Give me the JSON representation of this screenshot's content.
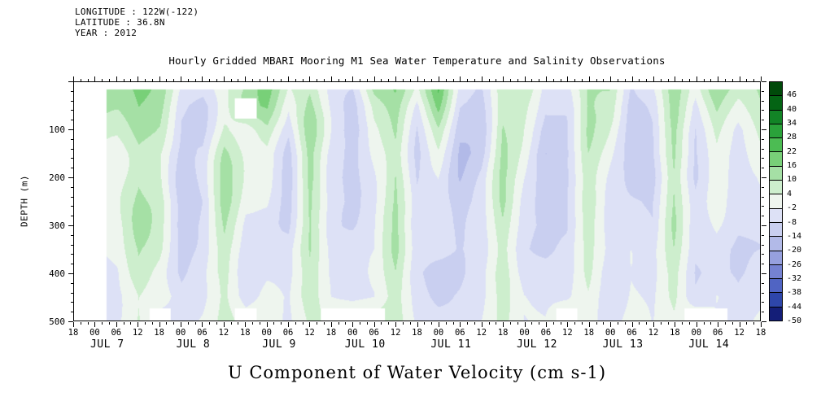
{
  "header": {
    "lines": [
      "LONGITUDE : 122W(-122)",
      "LATITUDE : 36.8N",
      "YEAR : 2012"
    ]
  },
  "title": "Hourly Gridded MBARI Mooring M1 Sea Water Temperature and Salinity Observations",
  "caption": "U Component of Water Velocity (cm s-1)",
  "axes": {
    "y": {
      "label": "DEPTH (m)",
      "min": 0,
      "max": 500,
      "major_step": 100,
      "minor_step": 20,
      "major_ticks": [
        100,
        200,
        300,
        400,
        500
      ]
    },
    "x": {
      "hours_span": 192,
      "major_step_hours": 6,
      "minor_step_hours": 2,
      "hour_tick_labels": [
        "18",
        "00",
        "06",
        "12",
        "18",
        "00",
        "06",
        "12",
        "18",
        "00",
        "06",
        "12",
        "18",
        "00",
        "06",
        "12",
        "18",
        "00",
        "06",
        "12",
        "18",
        "00",
        "06",
        "12",
        "18",
        "00",
        "06",
        "12",
        "18",
        "00",
        "06",
        "12",
        "18"
      ],
      "day_labels": [
        "JUL 7",
        "JUL 8",
        "JUL 9",
        "JUL 10",
        "JUL 11",
        "JUL 12",
        "JUL 13",
        "JUL 14"
      ]
    }
  },
  "colorbar": {
    "tick_values": [
      46,
      40,
      34,
      28,
      22,
      16,
      10,
      4,
      -2,
      -8,
      -14,
      -20,
      -26,
      -32,
      -38,
      -44,
      -50
    ],
    "level_min": -50,
    "level_step": 6,
    "n_cells": 17,
    "colors_bottom_up": [
      "#141e78",
      "#2e46aa",
      "#5064c3",
      "#7582d2",
      "#96a0de",
      "#b2bae8",
      "#c9cff0",
      "#dde1f6",
      "#eef5ee",
      "#cdeecd",
      "#a5e0a5",
      "#78d078",
      "#4cbc53",
      "#2aa23a",
      "#128426",
      "#046414",
      "#004a0a"
    ]
  },
  "chart_data": {
    "type": "heatmap",
    "title": "Hourly Gridded MBARI Mooring M1 Sea Water Temperature and Salinity Observations",
    "value_name": "U Component of Water Velocity",
    "units": "cm s-1",
    "ylabel": "DEPTH (m)",
    "y_range": [
      0,
      500
    ],
    "x_axis_start": "JUL 6 18:00 2012",
    "x_hours_since_start": [
      0,
      6,
      12,
      18,
      24,
      30,
      36,
      42,
      48,
      54,
      60,
      66,
      72,
      78,
      84,
      90,
      96,
      102,
      108,
      114,
      120,
      126,
      132,
      138,
      144,
      150,
      156,
      162,
      168,
      174,
      180,
      186,
      192
    ],
    "x_day_labels": [
      "JUL 7",
      "JUL 8",
      "JUL 9",
      "JUL 10",
      "JUL 11",
      "JUL 12",
      "JUL 13",
      "JUL 14"
    ],
    "depths_m": [
      15,
      50,
      100,
      150,
      200,
      250,
      300,
      350,
      400,
      450,
      500
    ],
    "level_step": 6,
    "level_range": [
      -50,
      52
    ],
    "missing": null,
    "values": [
      [
        null,
        null,
        14,
        18,
        12,
        -6,
        -4,
        6,
        12,
        18,
        2,
        10,
        -2,
        -6,
        12,
        14,
        -2,
        20,
        -4,
        -6,
        12,
        10,
        -6,
        -4,
        14,
        10,
        -12,
        -4,
        16,
        -2,
        14,
        8,
        12
      ],
      [
        null,
        null,
        12,
        16,
        10,
        -8,
        -8,
        6,
        null,
        16,
        -4,
        10,
        -4,
        -10,
        8,
        14,
        -6,
        16,
        -8,
        -8,
        12,
        6,
        -8,
        -6,
        12,
        6,
        -14,
        -6,
        14,
        -6,
        12,
        4,
        10
      ],
      [
        null,
        null,
        8,
        14,
        8,
        -10,
        -10,
        8,
        4,
        10,
        -8,
        12,
        -6,
        -14,
        4,
        14,
        -8,
        8,
        -12,
        -10,
        12,
        2,
        -12,
        -8,
        10,
        2,
        -12,
        -8,
        12,
        -8,
        8,
        -2,
        6
      ],
      [
        null,
        null,
        4,
        12,
        6,
        -12,
        -10,
        10,
        2,
        4,
        -10,
        12,
        -8,
        -12,
        2,
        12,
        -10,
        2,
        -14,
        -10,
        10,
        0,
        -14,
        -10,
        8,
        0,
        -10,
        -8,
        12,
        -8,
        4,
        -4,
        2
      ],
      [
        null,
        null,
        2,
        12,
        8,
        -12,
        -8,
        10,
        0,
        2,
        -10,
        14,
        -8,
        -10,
        0,
        12,
        -10,
        -2,
        -14,
        -8,
        10,
        -2,
        -12,
        -10,
        8,
        -2,
        -8,
        -10,
        10,
        -10,
        2,
        -6,
        -2
      ],
      [
        null,
        null,
        0,
        10,
        8,
        -10,
        -8,
        12,
        -2,
        0,
        -8,
        12,
        -6,
        -8,
        -2,
        10,
        -8,
        -4,
        -12,
        -8,
        12,
        -4,
        -10,
        -8,
        10,
        -4,
        -6,
        -8,
        10,
        -8,
        0,
        -8,
        -4
      ],
      [
        null,
        null,
        -2,
        10,
        6,
        -10,
        -6,
        10,
        -4,
        -2,
        -8,
        10,
        -6,
        -8,
        -4,
        10,
        -8,
        -6,
        -10,
        -6,
        10,
        -4,
        -8,
        -8,
        8,
        -6,
        -6,
        -8,
        12,
        -8,
        -2,
        -8,
        -8
      ],
      [
        null,
        null,
        -2,
        8,
        6,
        -8,
        -6,
        8,
        -4,
        -4,
        -6,
        10,
        -4,
        -6,
        -4,
        12,
        -6,
        -6,
        -8,
        -6,
        8,
        -6,
        -8,
        -6,
        6,
        -6,
        -4,
        -6,
        10,
        -6,
        -4,
        -10,
        -8
      ],
      [
        null,
        null,
        -4,
        8,
        4,
        -8,
        -4,
        8,
        -6,
        -4,
        -6,
        8,
        -4,
        -6,
        -2,
        10,
        -6,
        -8,
        -8,
        -4,
        8,
        -6,
        -6,
        -6,
        6,
        -8,
        -4,
        -6,
        8,
        -6,
        -4,
        -10,
        -6
      ],
      [
        null,
        null,
        -4,
        6,
        4,
        -6,
        -4,
        6,
        -6,
        -2,
        -4,
        8,
        -2,
        -4,
        -2,
        8,
        -4,
        -8,
        -6,
        -4,
        6,
        -4,
        -6,
        -4,
        4,
        -6,
        -2,
        -4,
        8,
        -4,
        -2,
        -8,
        -4
      ],
      [
        null,
        null,
        -2,
        6,
        null,
        -6,
        -2,
        6,
        null,
        0,
        -4,
        6,
        null,
        null,
        null,
        8,
        -4,
        -6,
        -6,
        -2,
        6,
        -4,
        -4,
        null,
        4,
        -4,
        0,
        -2,
        6,
        null,
        null,
        -6,
        2
      ]
    ]
  }
}
